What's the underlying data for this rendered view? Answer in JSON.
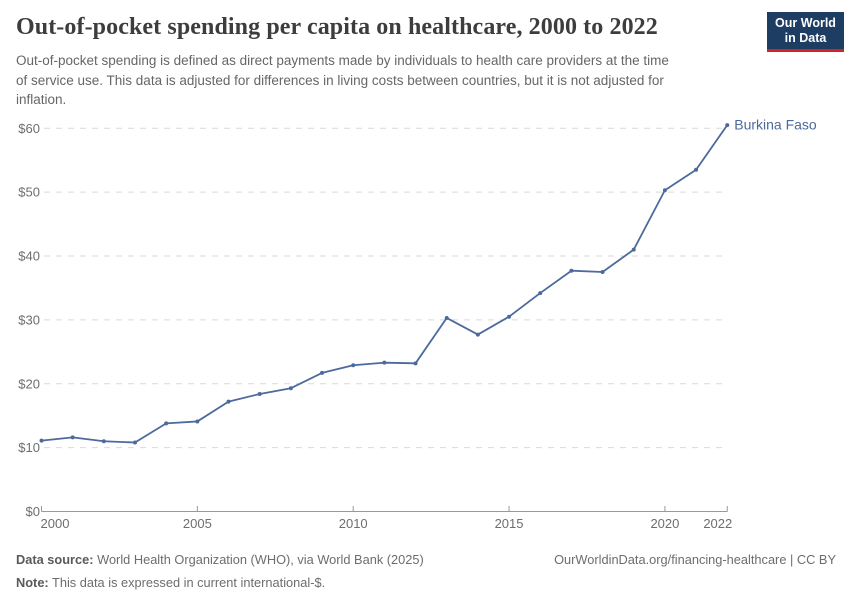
{
  "header": {
    "title": "Out-of-pocket spending per capita on healthcare, 2000 to 2022",
    "subtitle_lines": [
      "Out-of-pocket spending is defined as direct payments made by individuals to health care providers at the time",
      "of service use. This data is adjusted for differences in living costs between countries, but it is not adjusted for",
      "inflation."
    ],
    "logo": {
      "line1": "Our World",
      "line2": "in Data"
    }
  },
  "chart_data": {
    "type": "line",
    "title": "Out-of-pocket spending per capita on healthcare, 2000 to 2022",
    "x": [
      2000,
      2001,
      2002,
      2003,
      2004,
      2005,
      2006,
      2007,
      2008,
      2009,
      2010,
      2011,
      2012,
      2013,
      2014,
      2015,
      2016,
      2017,
      2018,
      2019,
      2020,
      2021,
      2022
    ],
    "series": [
      {
        "name": "Burkina Faso",
        "values": [
          11.1,
          11.6,
          11.0,
          10.8,
          13.8,
          14.1,
          17.2,
          18.4,
          19.3,
          21.7,
          22.9,
          23.3,
          23.2,
          30.3,
          27.7,
          30.5,
          34.2,
          37.7,
          37.5,
          41.0,
          50.3,
          53.5,
          60.5
        ],
        "color": "#4c6a9c"
      }
    ],
    "xlabel": "",
    "ylabel": "",
    "xlim": [
      2000,
      2022
    ],
    "ylim": [
      0,
      60
    ],
    "grid": true,
    "grid_style": "dashed",
    "legend_position": "end-of-line-label",
    "y_ticks": [
      {
        "value": 0,
        "label": "$0"
      },
      {
        "value": 10,
        "label": "$10"
      },
      {
        "value": 20,
        "label": "$20"
      },
      {
        "value": 30,
        "label": "$30"
      },
      {
        "value": 40,
        "label": "$40"
      },
      {
        "value": 50,
        "label": "$50"
      },
      {
        "value": 60,
        "label": "$60"
      }
    ],
    "x_ticks": [
      {
        "value": 2000,
        "label": "2000"
      },
      {
        "value": 2005,
        "label": "2005"
      },
      {
        "value": 2010,
        "label": "2010"
      },
      {
        "value": 2015,
        "label": "2015"
      },
      {
        "value": 2020,
        "label": "2020"
      },
      {
        "value": 2022,
        "label": "2022"
      }
    ]
  },
  "footer": {
    "data_source_label": "Data source:",
    "data_source_text": "World Health Organization (WHO), via World Bank (2025)",
    "note_label": "Note:",
    "note_text": "This data is expressed in current international-$.",
    "link_text": "OurWorldinData.org/financing-healthcare | CC BY"
  },
  "colors": {
    "line": "#4c6a9c",
    "grid": "#d9d9d9",
    "axis": "#999999",
    "tick_label": "#6e6e6e",
    "title": "#3d3d3d",
    "subtitle": "#666666",
    "footer": "#6d6d6d",
    "logo_navy": "#1d3d63",
    "logo_red": "#d0232a"
  }
}
